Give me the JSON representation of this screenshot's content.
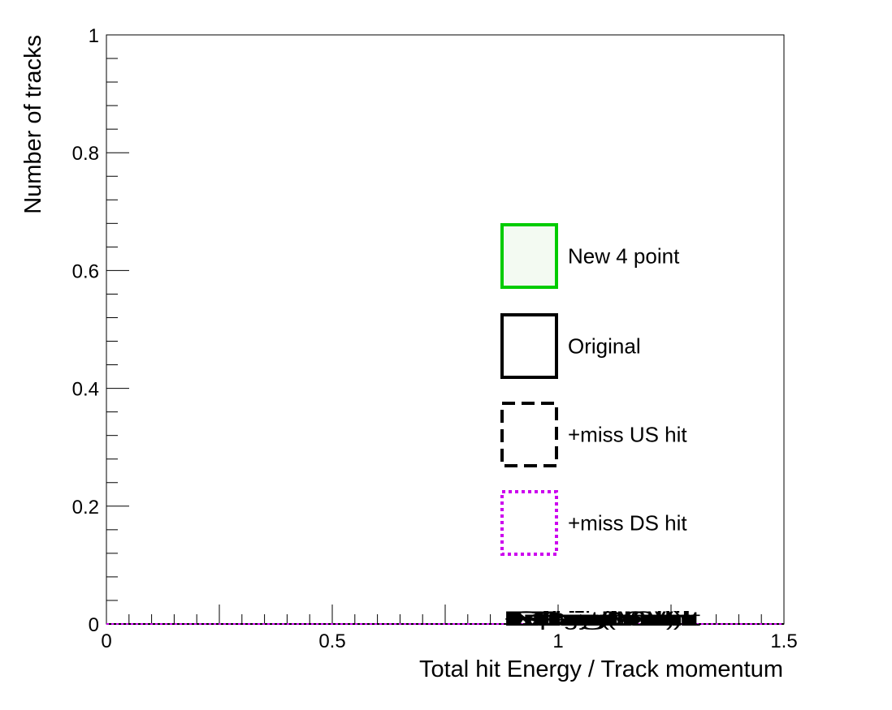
{
  "chart_data": {
    "type": "line",
    "xlabel": "Total hit Energy / Track momentum",
    "ylabel": "Number of tracks",
    "xlim": [
      0,
      1.5
    ],
    "ylim": [
      0,
      1
    ],
    "x_major_ticks": [
      0,
      0.5,
      1,
      1.5
    ],
    "x_tick_labels": [
      "0",
      "0.5",
      "1",
      "1.5"
    ],
    "y_major_ticks": [
      0,
      0.2,
      0.4,
      0.6,
      0.8,
      1
    ],
    "y_tick_labels": [
      "0",
      "0.2",
      "0.4",
      "0.6",
      "0.8",
      "1"
    ],
    "grid": false,
    "legend_position": "right",
    "series": [
      {
        "name": "New 4 point",
        "color": "#00cc00",
        "fill": "#f3faf2",
        "line_style": "solid",
        "values": [
          0,
          0
        ]
      },
      {
        "name": "Original",
        "color": "#000000",
        "fill": "none",
        "line_style": "solid",
        "values": [
          0,
          0
        ]
      },
      {
        "name": "+miss US hit",
        "color": "#000000",
        "fill": "none",
        "line_style": "dashed",
        "values": [
          0,
          0
        ]
      },
      {
        "name": "+miss DS hit",
        "color": "#cc00ee",
        "fill": "none",
        "line_style": "dotted",
        "values": [
          0,
          0
        ]
      }
    ],
    "x": [
      0,
      1.5
    ],
    "overlapping_annotations": {
      "x": 1,
      "text": [
        "Pion",
        "Proton",
        "Kaon",
        "Muon",
        "Electron",
        "Original",
        "Deposit (MeV)",
        "Energy (MeV)",
        "+miss US hit",
        "+miss DS hit"
      ]
    }
  }
}
